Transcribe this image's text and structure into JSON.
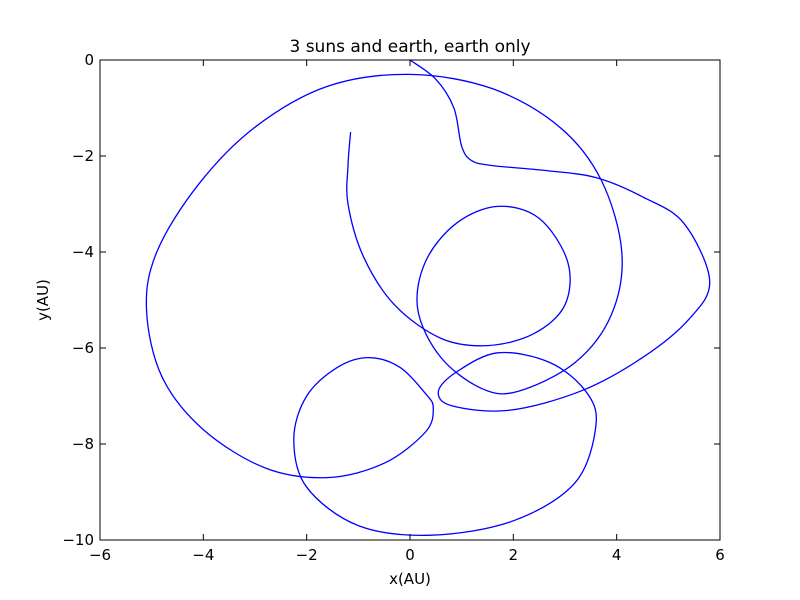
{
  "chart_data": {
    "type": "line",
    "title": "3 suns and earth, earth only",
    "xlabel": "x(AU)",
    "ylabel": "y(AU)",
    "xlim": [
      -6,
      6
    ],
    "ylim": [
      -10,
      0
    ],
    "xticks": [
      -6,
      -4,
      -2,
      0,
      2,
      4,
      6
    ],
    "yticks": [
      0,
      -2,
      -4,
      -6,
      -8,
      -10
    ],
    "xtick_labels": [
      "−6",
      "−4",
      "−2",
      "0",
      "2",
      "4",
      "6"
    ],
    "ytick_labels": [
      "0",
      "−2",
      "−4",
      "−6",
      "−8",
      "−10"
    ],
    "grid": false,
    "legend": "none",
    "series": [
      {
        "color": "#0000ff",
        "points": [
          [
            0.0,
            0.0
          ],
          [
            0.5,
            -0.4
          ],
          [
            0.85,
            -1.0
          ],
          [
            1.0,
            -1.8
          ],
          [
            1.2,
            -2.1
          ],
          [
            1.6,
            -2.2
          ],
          [
            2.6,
            -2.3
          ],
          [
            3.6,
            -2.45
          ],
          [
            4.5,
            -2.85
          ],
          [
            5.3,
            -3.4
          ],
          [
            5.8,
            -4.6
          ],
          [
            5.4,
            -5.4
          ],
          [
            4.5,
            -6.2
          ],
          [
            3.3,
            -6.9
          ],
          [
            1.9,
            -7.3
          ],
          [
            0.8,
            -7.2
          ],
          [
            0.55,
            -6.9
          ],
          [
            0.9,
            -6.5
          ],
          [
            1.7,
            -6.1
          ],
          [
            2.7,
            -6.3
          ],
          [
            3.4,
            -6.9
          ],
          [
            3.6,
            -7.6
          ],
          [
            3.2,
            -8.8
          ],
          [
            2.0,
            -9.6
          ],
          [
            0.4,
            -9.9
          ],
          [
            -1.0,
            -9.7
          ],
          [
            -2.0,
            -8.9
          ],
          [
            -2.25,
            -7.9
          ],
          [
            -2.0,
            -7.0
          ],
          [
            -1.4,
            -6.4
          ],
          [
            -0.8,
            -6.2
          ],
          [
            -0.2,
            -6.4
          ],
          [
            0.3,
            -6.95
          ],
          [
            0.45,
            -7.25
          ],
          [
            0.3,
            -7.75
          ],
          [
            -0.5,
            -8.4
          ],
          [
            -1.6,
            -8.7
          ],
          [
            -2.8,
            -8.5
          ],
          [
            -4.0,
            -7.7
          ],
          [
            -4.8,
            -6.6
          ],
          [
            -5.1,
            -5.2
          ],
          [
            -4.9,
            -4.0
          ],
          [
            -4.1,
            -2.6
          ],
          [
            -3.0,
            -1.4
          ],
          [
            -1.6,
            -0.55
          ],
          [
            0.0,
            -0.3
          ],
          [
            1.6,
            -0.6
          ],
          [
            2.9,
            -1.4
          ],
          [
            3.7,
            -2.5
          ],
          [
            4.1,
            -4.0
          ],
          [
            3.9,
            -5.3
          ],
          [
            3.2,
            -6.3
          ],
          [
            2.1,
            -6.9
          ],
          [
            1.4,
            -6.85
          ],
          [
            0.6,
            -6.2
          ],
          [
            0.15,
            -5.2
          ],
          [
            0.3,
            -4.2
          ],
          [
            0.9,
            -3.4
          ],
          [
            1.7,
            -3.05
          ],
          [
            2.5,
            -3.3
          ],
          [
            3.05,
            -4.2
          ],
          [
            3.0,
            -5.1
          ],
          [
            2.4,
            -5.7
          ],
          [
            1.5,
            -5.95
          ],
          [
            0.6,
            -5.8
          ],
          [
            -0.3,
            -5.1
          ],
          [
            -0.9,
            -4.1
          ],
          [
            -1.2,
            -3.0
          ],
          [
            -1.2,
            -2.2
          ],
          [
            -1.15,
            -1.5
          ]
        ]
      }
    ]
  }
}
